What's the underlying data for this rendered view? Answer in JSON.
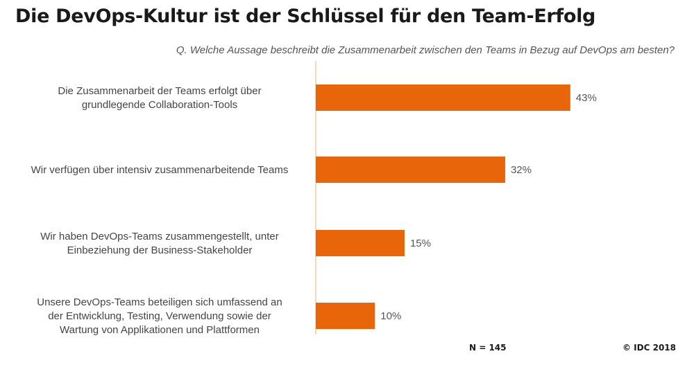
{
  "title": "Die DevOps-Kultur ist der Schlüssel für den Team-Erfolg",
  "subtitle": "Q. Welche Aussage beschreibt die Zusammenarbeit zwischen den Teams in Bezug auf DevOps am besten?",
  "footer": {
    "sample": "N = 145",
    "source": "© IDC 2018"
  },
  "colors": {
    "bar": "#E8650A",
    "axis": "#F0C9A0"
  },
  "chart_data": {
    "type": "bar",
    "orientation": "horizontal",
    "title": "Die DevOps-Kultur ist der Schlüssel für den Team-Erfolg",
    "xlabel": "",
    "ylabel": "",
    "xlim": [
      0,
      50
    ],
    "grid": false,
    "categories": [
      [
        "Die Zusammenarbeit der Teams erfolgt über",
        "grundlegende Collaboration-Tools"
      ],
      [
        "Wir verfügen über intensiv zusammenarbeitende Teams"
      ],
      [
        "Wir haben DevOps-Teams zusammengestellt, unter",
        "Einbeziehung der Business-Stakeholder"
      ],
      [
        "Unsere DevOps-Teams beteiligen sich umfassend an",
        "der Entwicklung, Testing, Verwendung sowie der",
        "Wartung von Applikationen und Plattformen"
      ]
    ],
    "values": [
      43,
      32,
      15,
      10
    ],
    "value_labels": [
      "43%",
      "32%",
      "15%",
      "10%"
    ]
  }
}
